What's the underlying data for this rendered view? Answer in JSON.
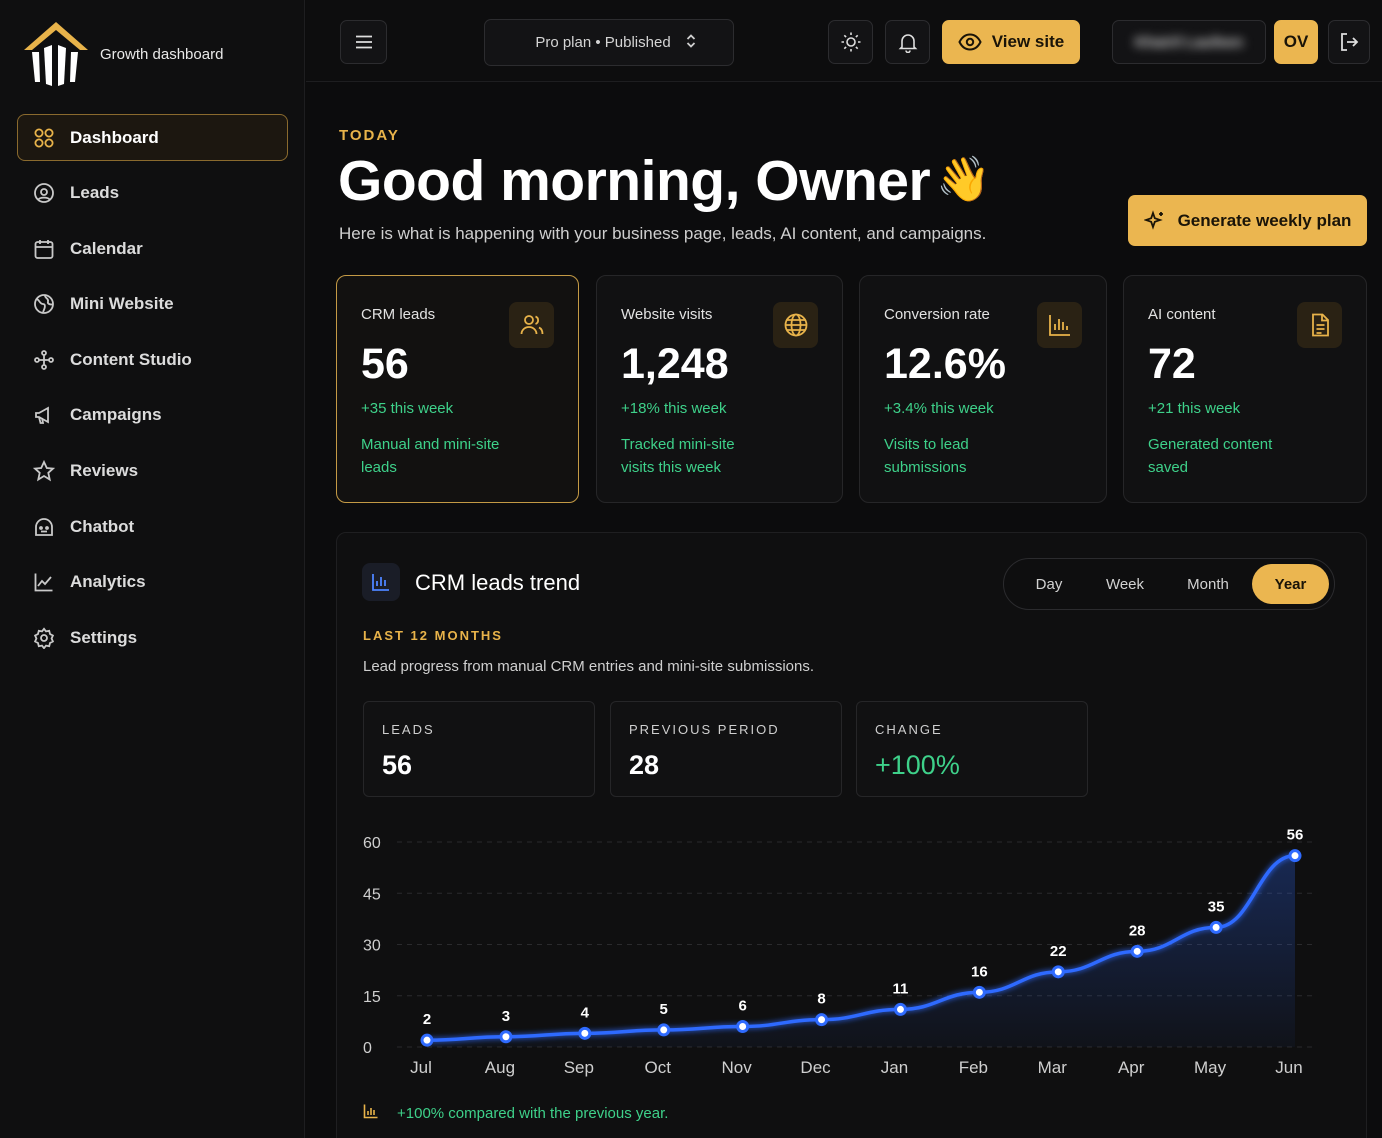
{
  "brand": {
    "name": "Growth dashboard"
  },
  "sidebar": {
    "items": [
      {
        "label": "Dashboard",
        "icon": "grid-icon",
        "active": true
      },
      {
        "label": "Leads",
        "icon": "at-sign-icon"
      },
      {
        "label": "Calendar",
        "icon": "calendar-icon"
      },
      {
        "label": "Mini Website",
        "icon": "globe-icon"
      },
      {
        "label": "Content Studio",
        "icon": "sparkle-icon"
      },
      {
        "label": "Campaigns",
        "icon": "megaphone-icon"
      },
      {
        "label": "Reviews",
        "icon": "star-icon"
      },
      {
        "label": "Chatbot",
        "icon": "bot-icon"
      },
      {
        "label": "Analytics",
        "icon": "line-chart-icon"
      },
      {
        "label": "Settings",
        "icon": "gear-icon"
      }
    ]
  },
  "topbar": {
    "plan_label": "Pro plan • Published",
    "view_site_label": "View site",
    "user_name": "Khairil Laufeen",
    "avatar_initials": "OV"
  },
  "header": {
    "kicker": "TODAY",
    "greeting": "Good morning, Owner",
    "wave": "👋",
    "subline": "Here is what is happening with your business page, leads, AI content, and campaigns.",
    "generate_label": "Generate weekly plan"
  },
  "cards": [
    {
      "title": "CRM leads",
      "value": "56",
      "delta": "+35 this week",
      "note": "Manual and mini-site leads",
      "icon": "users-icon"
    },
    {
      "title": "Website visits",
      "value": "1,248",
      "delta": "+18% this week",
      "note": "Tracked mini-site visits this week",
      "icon": "globe-icon"
    },
    {
      "title": "Conversion rate",
      "value": "12.6%",
      "delta": "+3.4% this week",
      "note": "Visits to lead submissions",
      "icon": "bar-chart-icon"
    },
    {
      "title": "AI content",
      "value": "72",
      "delta": "+21 this week",
      "note": "Generated content saved",
      "icon": "document-icon"
    }
  ],
  "trend": {
    "title": "CRM leads trend",
    "tabs": [
      "Day",
      "Week",
      "Month",
      "Year"
    ],
    "active_tab": "Year",
    "kicker": "LAST 12 MONTHS",
    "description": "Lead progress from manual CRM entries and mini-site submissions.",
    "stats": [
      {
        "label": "LEADS",
        "value": "56"
      },
      {
        "label": "PREVIOUS PERIOD",
        "value": "28"
      },
      {
        "label": "CHANGE",
        "value": "+100%"
      }
    ],
    "footnote": "+100% compared with the previous year."
  },
  "colors": {
    "accent": "#ebb650",
    "positive": "#3ed18a",
    "line": "#2f6bff"
  },
  "chart_data": {
    "type": "line",
    "categories": [
      "Jul",
      "Aug",
      "Sep",
      "Oct",
      "Nov",
      "Dec",
      "Jan",
      "Feb",
      "Mar",
      "Apr",
      "May",
      "Jun"
    ],
    "values": [
      2,
      3,
      4,
      5,
      6,
      8,
      11,
      16,
      22,
      28,
      35,
      56
    ],
    "yticks": [
      0,
      15,
      30,
      45,
      60
    ],
    "ylim": [
      0,
      60
    ],
    "grid": true,
    "data_labels": true
  }
}
